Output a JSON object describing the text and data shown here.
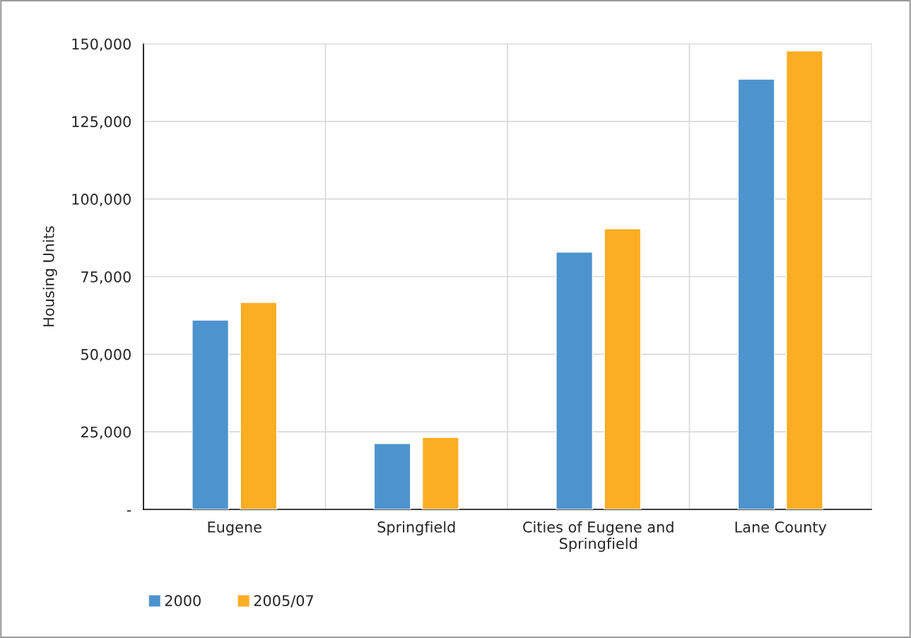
{
  "chart_data": {
    "type": "bar",
    "ylabel": "Housing Units",
    "categories": [
      "Eugene",
      "Springfield",
      "Cities of Eugene and\nSpringfield",
      "Lane County"
    ],
    "series": [
      {
        "name": "2000",
        "color": "#4d93ce",
        "values": [
          61000,
          21200,
          82900,
          138600
        ]
      },
      {
        "name": "2005/07",
        "color": "#fbad24",
        "values": [
          66700,
          23200,
          90400,
          147700
        ]
      }
    ],
    "ylim": [
      0,
      150000
    ],
    "yticks": [
      {
        "value": 0,
        "label": "-"
      },
      {
        "value": 25000,
        "label": "25,000"
      },
      {
        "value": 50000,
        "label": "50,000"
      },
      {
        "value": 75000,
        "label": "75,000"
      },
      {
        "value": 100000,
        "label": "100,000"
      },
      {
        "value": 125000,
        "label": "125,000"
      },
      {
        "value": 150000,
        "label": "150,000"
      }
    ],
    "grid": true,
    "legend": "bottom left"
  }
}
